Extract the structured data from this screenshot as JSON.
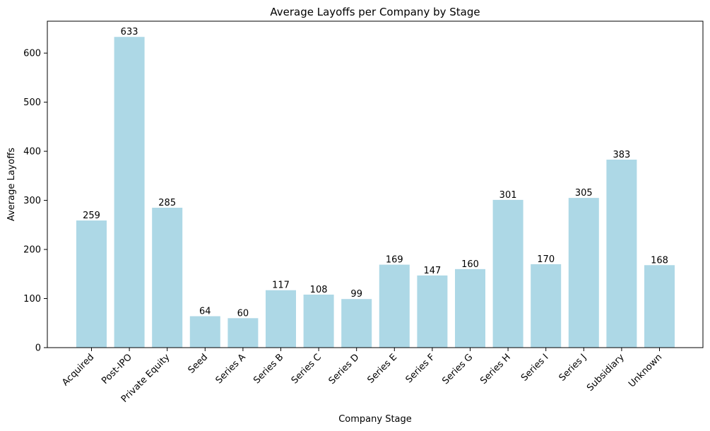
{
  "chart_data": {
    "type": "bar",
    "title": "Average Layoffs per Company by Stage",
    "xlabel": "Company Stage",
    "ylabel": "Average Layoffs",
    "categories": [
      "Acquired",
      "Post-IPO",
      "Private Equity",
      "Seed",
      "Series A",
      "Series B",
      "Series C",
      "Series D",
      "Series E",
      "Series F",
      "Series G",
      "Series H",
      "Series I",
      "Series J",
      "Subsidiary",
      "Unknown"
    ],
    "values": [
      259,
      633,
      285,
      64,
      60,
      117,
      108,
      99,
      169,
      147,
      160,
      301,
      170,
      305,
      383,
      168
    ],
    "ylim": [
      0,
      665
    ],
    "yticks": [
      0,
      100,
      200,
      300,
      400,
      500,
      600
    ],
    "bar_color": "#add8e6",
    "grid": false,
    "legend": "none"
  }
}
